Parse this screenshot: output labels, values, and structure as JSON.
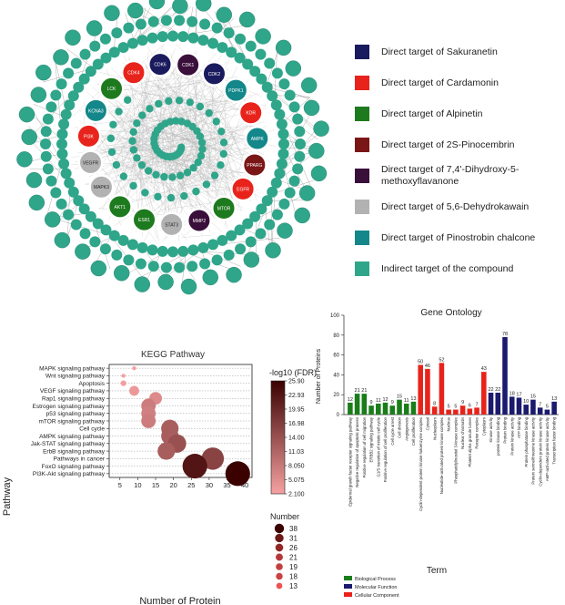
{
  "network": {
    "legend": [
      {
        "label": "Direct target of Sakuranetin",
        "color": "#1a1a5e"
      },
      {
        "label": "Direct target of Cardamonin",
        "color": "#e8231b"
      },
      {
        "label": "Direct target of Alpinetin",
        "color": "#1e7a1e"
      },
      {
        "label": "Direct target of 2S-Pinocembrin",
        "color": "#7a1616"
      },
      {
        "label": "Direct target of 7,4'-Dihydroxy-5-methoxyflavanone",
        "color": "#3a0f3a"
      },
      {
        "label": "Direct target of 5,6-Dehydrokawain",
        "color": "#b2b2b2"
      },
      {
        "label": "Direct target of Pinostrobin chalcone",
        "color": "#13878a"
      },
      {
        "label": "Indirect target of the compound",
        "color": "#2fa58a"
      }
    ],
    "hubs": [
      {
        "label": "CDK1",
        "color": "#3a0f3a"
      },
      {
        "label": "CDK2",
        "color": "#1a1a5e"
      },
      {
        "label": "PDPK1",
        "color": "#13878a"
      },
      {
        "label": "KDR",
        "color": "#e8231b"
      },
      {
        "label": "AMPK",
        "color": "#13878a"
      },
      {
        "label": "PPARG",
        "color": "#7a1616"
      },
      {
        "label": "EGFR",
        "color": "#e8231b"
      },
      {
        "label": "MTOR",
        "color": "#1e7a1e"
      },
      {
        "label": "MMP2",
        "color": "#3a0f3a"
      },
      {
        "label": "STAT3",
        "color": "#b2b2b2"
      },
      {
        "label": "ESR1",
        "color": "#1e7a1e"
      },
      {
        "label": "AKT1",
        "color": "#1e7a1e"
      },
      {
        "label": "MAPK3",
        "color": "#b2b2b2"
      },
      {
        "label": "VEGFR",
        "color": "#b2b2b2"
      },
      {
        "label": "PI3K",
        "color": "#e8231b"
      },
      {
        "label": "KCNA3",
        "color": "#13878a"
      },
      {
        "label": "LCK",
        "color": "#1e7a1e"
      },
      {
        "label": "CDK4",
        "color": "#e8231b"
      },
      {
        "label": "CDK6",
        "color": "#1a1a5e"
      }
    ]
  },
  "chart_data": [
    {
      "type": "scatter",
      "title": "KEGG Pathway",
      "xlabel": "Number of Protein",
      "ylabel": "Pathway",
      "xlim": [
        2,
        42
      ],
      "xticks": [
        5,
        10,
        15,
        20,
        25,
        30,
        35,
        40
      ],
      "categories": [
        "MAPK signaling pathway",
        "Wnt signaling pathway",
        "Apoptosis",
        "VEGF signaling pathway",
        "Rap1 signaling pathway",
        "Estrogen signaling pathway",
        "p53 signaling pathway",
        "mTOR signaling pathway",
        "Cell cycle",
        "AMPK signaling pathway",
        "Jak-STAT signaling pathway",
        "ErbB signaling pathway",
        "Pathways in cancer",
        "FoxO signaling pathway",
        "PI3K-Akt signaling pathway"
      ],
      "points": [
        {
          "pathway": "MAPK signaling pathway",
          "x": 9,
          "size": 1,
          "fdr": 2.2
        },
        {
          "pathway": "Wnt signaling pathway",
          "x": 6,
          "size": 1,
          "fdr": 2.3
        },
        {
          "pathway": "Apoptosis",
          "x": 6,
          "size": 2,
          "fdr": 2.5
        },
        {
          "pathway": "VEGF signaling pathway",
          "x": 9,
          "size": 6,
          "fdr": 3.5
        },
        {
          "pathway": "Rap1 signaling pathway",
          "x": 15,
          "size": 10,
          "fdr": 5.5
        },
        {
          "pathway": "Estrogen signaling pathway",
          "x": 13,
          "size": 13,
          "fdr": 7.5
        },
        {
          "pathway": "p53 signaling pathway",
          "x": 13,
          "size": 13,
          "fdr": 7.0
        },
        {
          "pathway": "mTOR signaling pathway",
          "x": 13,
          "size": 13,
          "fdr": 7.5
        },
        {
          "pathway": "Cell cycle",
          "x": 19,
          "size": 19,
          "fdr": 12
        },
        {
          "pathway": "AMPK signaling pathway",
          "x": 19,
          "size": 19,
          "fdr": 12
        },
        {
          "pathway": "Jak-STAT signaling pathway",
          "x": 21,
          "size": 21,
          "fdr": 14
        },
        {
          "pathway": "ErbB signaling pathway",
          "x": 18,
          "size": 19,
          "fdr": 12
        },
        {
          "pathway": "Pathways in cancer",
          "x": 31,
          "size": 31,
          "fdr": 16
        },
        {
          "pathway": "FoxO signaling pathway",
          "x": 26,
          "size": 38,
          "fdr": 23
        },
        {
          "pathway": "PI3K-Akt signaling pathway",
          "x": 38,
          "size": 38,
          "fdr": 25.9
        }
      ],
      "colorbar": {
        "title": "-log10 (FDR)",
        "ticks": [
          "25.90",
          "22.93",
          "19.95",
          "16.98",
          "14.00",
          "11.03",
          "8.050",
          "5.075",
          "2.100"
        ],
        "min": 2.1,
        "max": 25.9,
        "color_low": "#f7a1a1",
        "color_high": "#3b0000"
      },
      "size_legend": {
        "title": "Number",
        "values": [
          38,
          31,
          26,
          21,
          19,
          18,
          13
        ]
      }
    },
    {
      "type": "bar",
      "title": "Gene Ontology",
      "xlabel": "Term",
      "ylabel": "Number of Proteins",
      "ylim": [
        0,
        100
      ],
      "yticks": [
        0,
        20,
        40,
        60,
        80,
        100
      ],
      "groups": [
        {
          "name": "Biological Process",
          "color": "#1a7d1a"
        },
        {
          "name": "Molecular Function",
          "color": "#1a1a6e"
        },
        {
          "name": "Cellular Component",
          "color": "#e8231b"
        }
      ],
      "bars": [
        {
          "term": "Epidermal growth factor receptor signaling pathway",
          "value": 12,
          "group": 0
        },
        {
          "term": "Negative regulation of apoptotic process",
          "value": 21,
          "group": 0
        },
        {
          "term": "Positive regulation of cell migration",
          "value": 21,
          "group": 0
        },
        {
          "term": "ERBB2 signaling pathway",
          "value": 9,
          "group": 0
        },
        {
          "term": "G1/S transition of mitotic cell cycle",
          "value": 11,
          "group": 0
        },
        {
          "term": "Positive regulation of cell proliferation",
          "value": 12,
          "group": 0
        },
        {
          "term": "Cell cycle arrest",
          "value": 9,
          "group": 0
        },
        {
          "term": "Cell division",
          "value": 15,
          "group": 0
        },
        {
          "term": "Angiogenesis",
          "value": 11,
          "group": 0
        },
        {
          "term": "Cell proliferation",
          "value": 13,
          "group": 0
        },
        {
          "term": "Cyclin-dependent protein kinase holoenzyme complex",
          "value": 50,
          "group": 2
        },
        {
          "term": "Cytosol",
          "value": 46,
          "group": 2
        },
        {
          "term": "Nucleoplasm",
          "value": 8,
          "group": 2
        },
        {
          "term": "Nucleotide-activated protein kinase complex",
          "value": 52,
          "group": 2
        },
        {
          "term": "Nucleus",
          "value": 5,
          "group": 2
        },
        {
          "term": "Phosphatidylinositol 3-kinase complex",
          "value": 5,
          "group": 2
        },
        {
          "term": "Nuclear chromatin",
          "value": 9,
          "group": 2
        },
        {
          "term": "Platelet alpha granule lumen",
          "value": 6,
          "group": 2
        },
        {
          "term": "Receptor complex",
          "value": 7,
          "group": 2
        },
        {
          "term": "Cytoplasm",
          "value": 43,
          "group": 2
        },
        {
          "term": "Kinase activity",
          "value": 22,
          "group": 1
        },
        {
          "term": "protein kinase binding",
          "value": 22,
          "group": 1
        },
        {
          "term": "Protein binding",
          "value": 78,
          "group": 1
        },
        {
          "term": "Protein kinase activity",
          "value": 18,
          "group": 1
        },
        {
          "term": "ATP binding",
          "value": 17,
          "group": 1
        },
        {
          "term": "Protein phosphatase binding",
          "value": 10,
          "group": 1
        },
        {
          "term": "Protein serine/threonine kinase activity",
          "value": 15,
          "group": 1
        },
        {
          "term": "Cyclin-dependent protein kinase activity",
          "value": 7,
          "group": 1
        },
        {
          "term": "AMP-activated protein kinase activity",
          "value": 5,
          "group": 1
        },
        {
          "term": "Transcription factor binding",
          "value": 13,
          "group": 1
        }
      ]
    }
  ]
}
